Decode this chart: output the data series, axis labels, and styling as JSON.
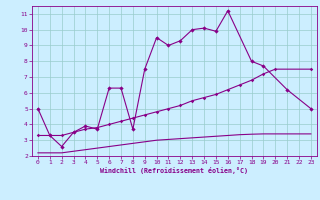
{
  "xlabel": "Windchill (Refroidissement éolien,°C)",
  "bg_color": "#cceeff",
  "line_color": "#880088",
  "grid_color": "#99cccc",
  "xlim": [
    -0.5,
    23.5
  ],
  "ylim": [
    2,
    11.5
  ],
  "xticks": [
    0,
    1,
    2,
    3,
    4,
    5,
    6,
    7,
    8,
    9,
    10,
    11,
    12,
    13,
    14,
    15,
    16,
    17,
    18,
    19,
    20,
    21,
    22,
    23
  ],
  "yticks": [
    2,
    3,
    4,
    5,
    6,
    7,
    8,
    9,
    10,
    11
  ],
  "series1": {
    "x": [
      0,
      1,
      2,
      3,
      4,
      5,
      6,
      7,
      8,
      9,
      10,
      11,
      12,
      13,
      14,
      15,
      16,
      18,
      19,
      21,
      23
    ],
    "y": [
      5.0,
      3.3,
      2.6,
      3.5,
      3.9,
      3.7,
      6.3,
      6.3,
      3.7,
      7.5,
      9.5,
      9.0,
      9.3,
      10.0,
      10.1,
      9.9,
      11.2,
      8.0,
      7.7,
      6.2,
      5.0
    ]
  },
  "series2": {
    "x": [
      0,
      1,
      2,
      3,
      4,
      5,
      6,
      7,
      8,
      9,
      10,
      11,
      12,
      13,
      14,
      15,
      16,
      17,
      18,
      19,
      20,
      23
    ],
    "y": [
      3.3,
      3.3,
      3.3,
      3.5,
      3.7,
      3.8,
      4.0,
      4.2,
      4.4,
      4.6,
      4.8,
      5.0,
      5.2,
      5.5,
      5.7,
      5.9,
      6.2,
      6.5,
      6.8,
      7.2,
      7.5,
      7.5
    ]
  },
  "series3": {
    "x": [
      0,
      2,
      3,
      4,
      5,
      6,
      7,
      8,
      9,
      10,
      11,
      12,
      13,
      14,
      15,
      16,
      17,
      18,
      19,
      20,
      21,
      22,
      23
    ],
    "y": [
      2.2,
      2.2,
      2.3,
      2.4,
      2.5,
      2.6,
      2.7,
      2.8,
      2.9,
      3.0,
      3.05,
      3.1,
      3.15,
      3.2,
      3.25,
      3.3,
      3.35,
      3.38,
      3.4,
      3.4,
      3.4,
      3.4,
      3.4
    ]
  }
}
